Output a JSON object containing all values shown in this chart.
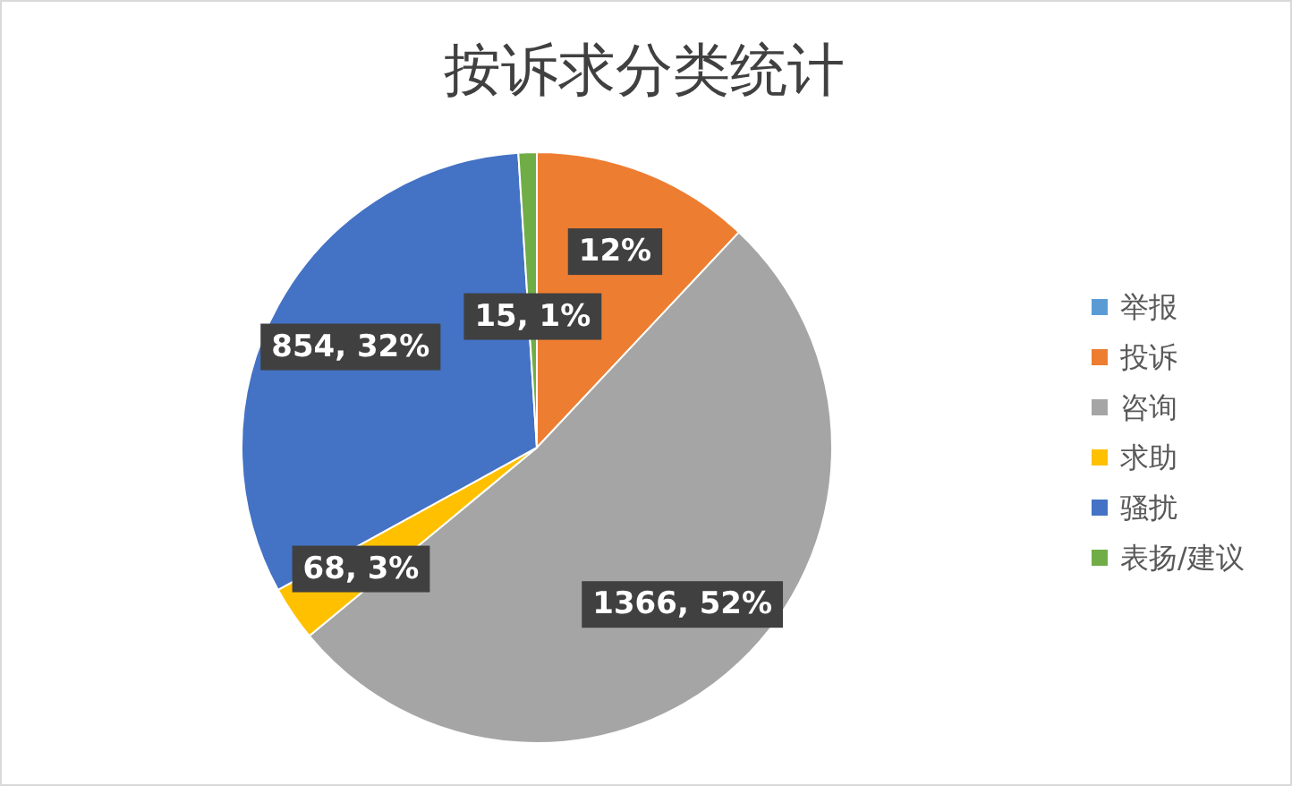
{
  "chart_data": {
    "type": "pie",
    "title": "按诉求分类统计",
    "categories": [
      "举报",
      "投诉",
      "咨询",
      "求助",
      "骚扰",
      "表扬/建议"
    ],
    "values": [
      null,
      12,
      52,
      3,
      32,
      1
    ],
    "colors": [
      "#5b9bd5",
      "#ed7d31",
      "#a5a5a5",
      "#ffc000",
      "#4472c4",
      "#70ad47"
    ],
    "value_labels": [
      null,
      "12%",
      "1366, 52%",
      "68, 3%",
      "854, 32%",
      "15, 1%"
    ],
    "legend": "right"
  }
}
